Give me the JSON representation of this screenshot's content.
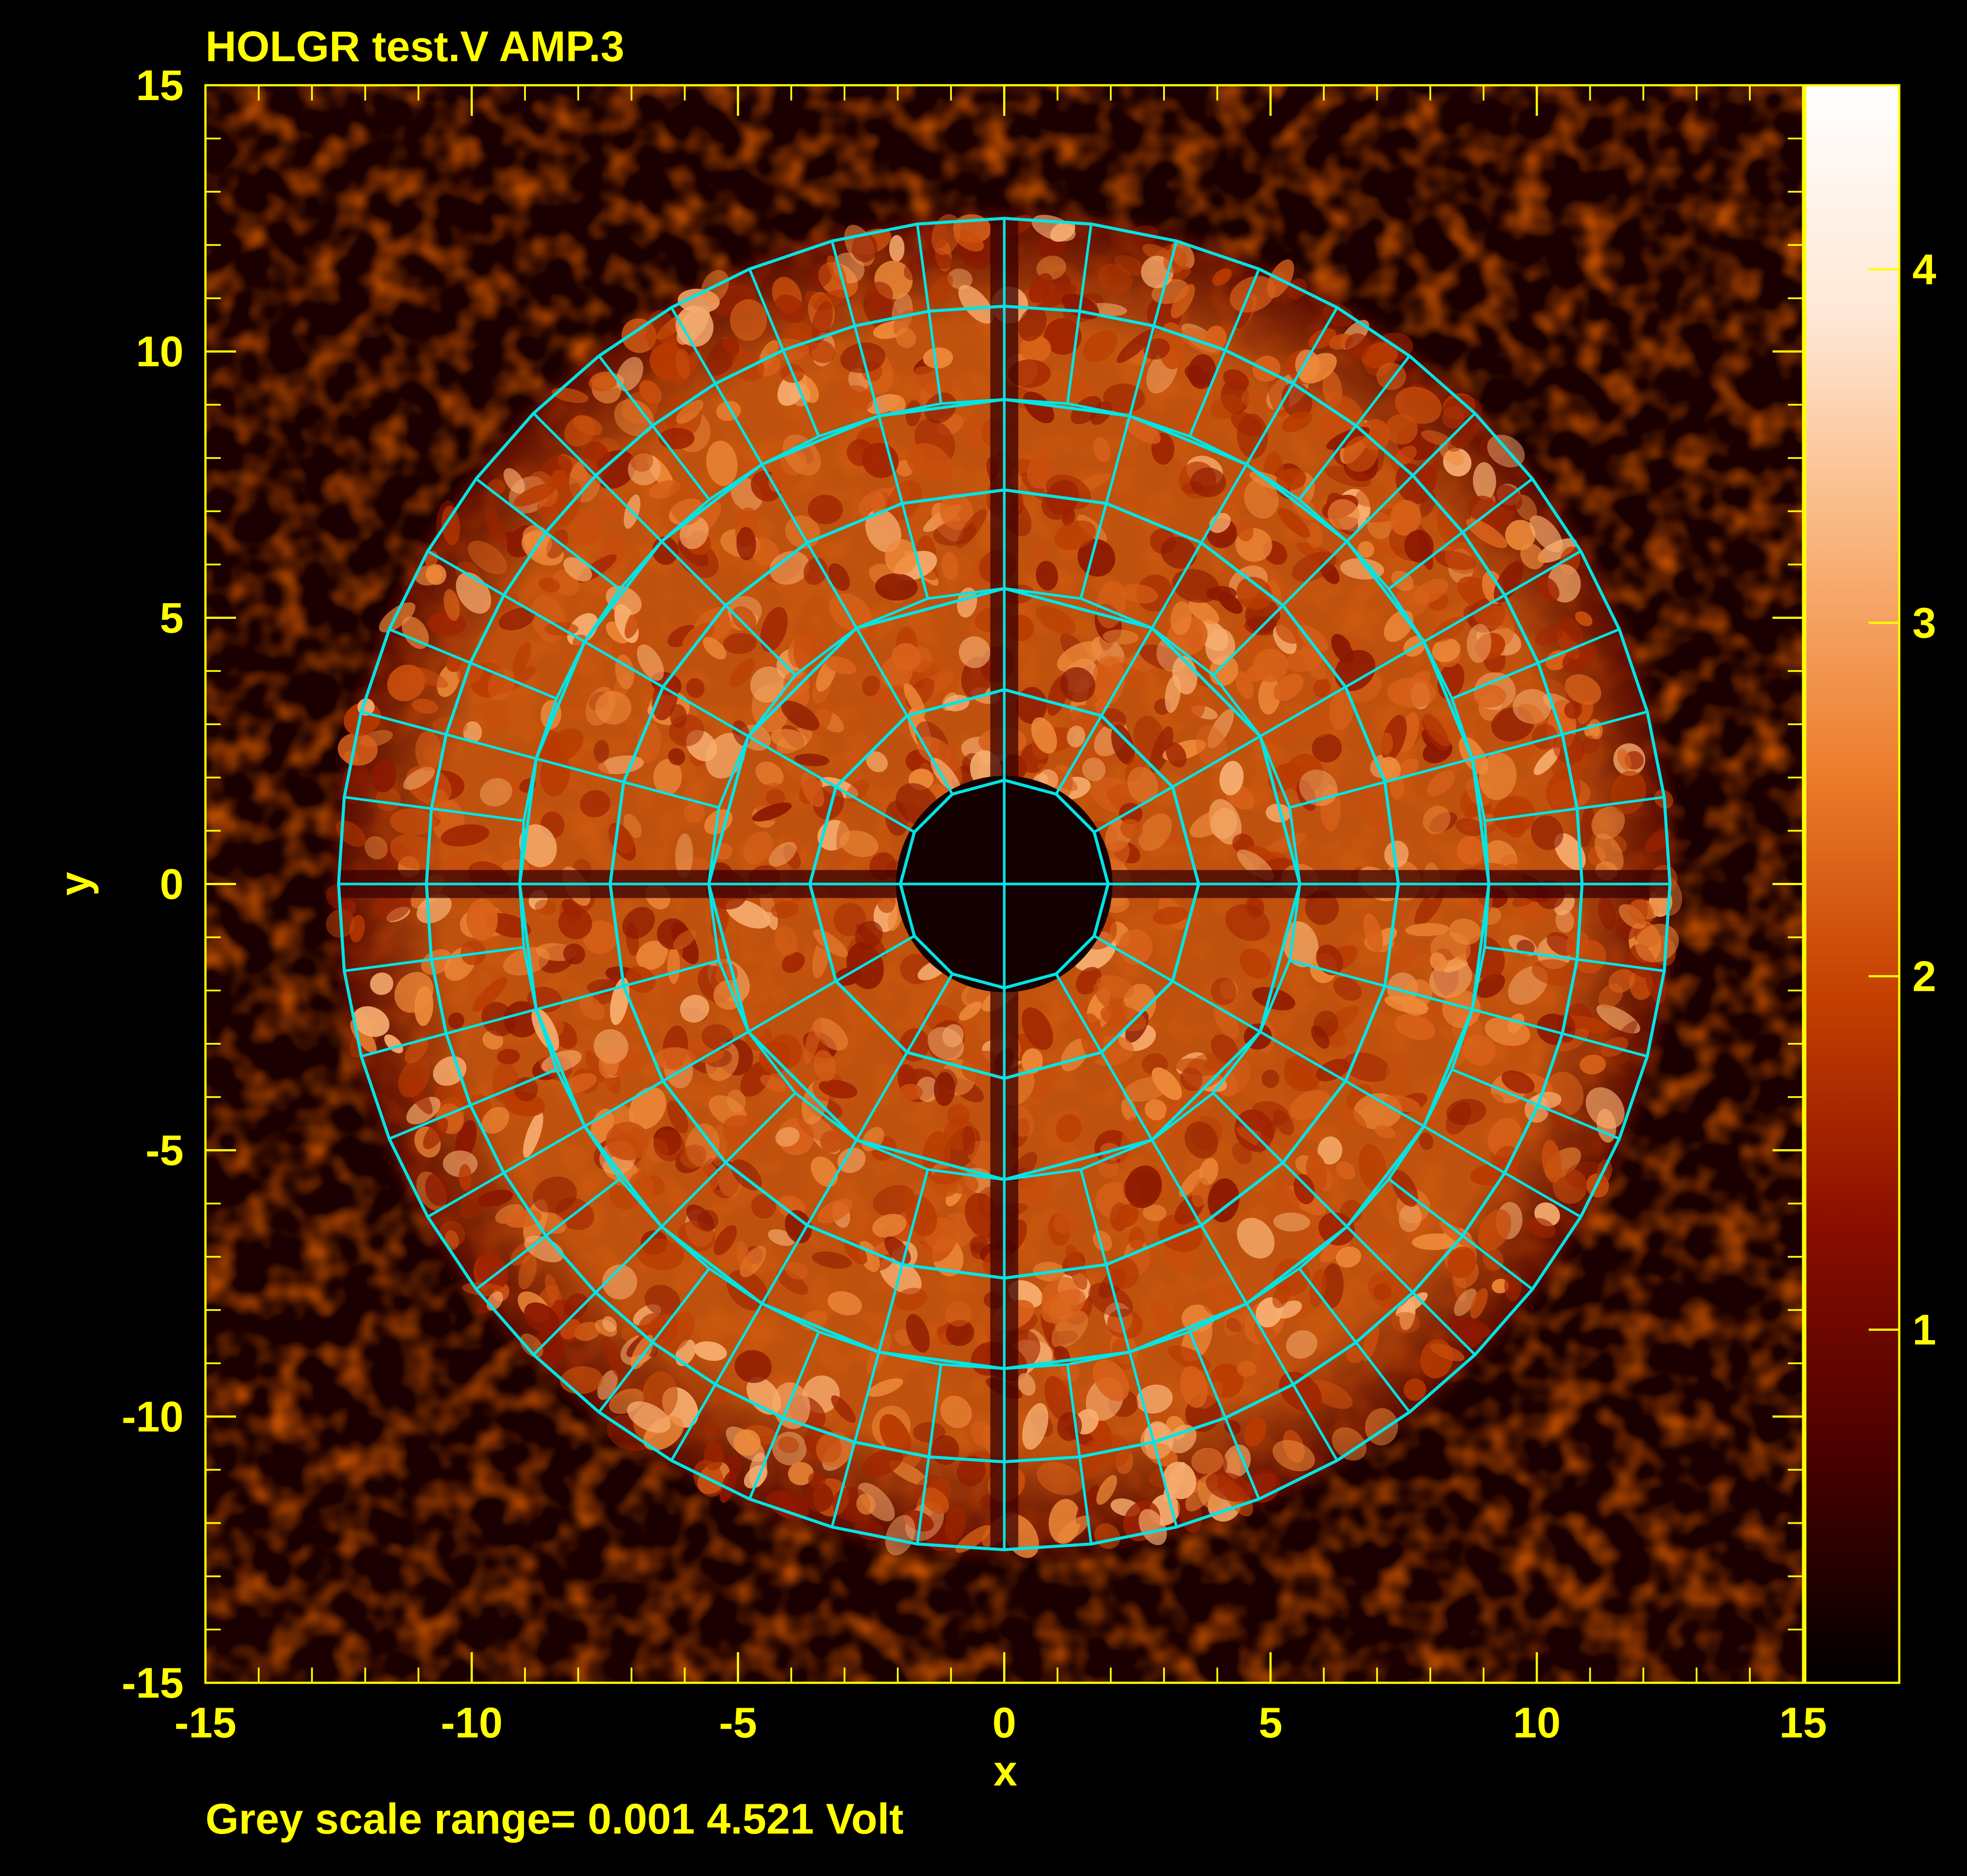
{
  "chart_data": {
    "type": "heatmap",
    "title": "HOLGR test.V AMP.3",
    "xlabel": "x",
    "ylabel": "y",
    "xlim": [
      -15,
      15
    ],
    "ylim": [
      -15,
      15
    ],
    "x_ticks": [
      "-15",
      "-10",
      "-5",
      "0",
      "5",
      "10",
      "15"
    ],
    "y_ticks": [
      "15",
      "10",
      "5",
      "0",
      "-5",
      "-10",
      "-15"
    ],
    "colorbar": {
      "range": [
        0.001,
        4.521
      ],
      "ticks": [
        "1",
        "2",
        "3",
        "4"
      ],
      "tick_values": [
        1,
        2,
        3,
        4
      ],
      "colormap": [
        "#000000",
        "#4a0000",
        "#8b0d00",
        "#c44000",
        "#ec7d2c",
        "#f9b47c",
        "#ffe8d6",
        "#ffffff"
      ]
    },
    "footer": "Grey scale range= 0.001 4.521 Volt",
    "dish": {
      "ring_radii": [
        1.95,
        3.65,
        5.55,
        7.4,
        9.1,
        10.85,
        12.5
      ],
      "panels_per_ring": [
        12,
        12,
        24,
        24,
        48,
        48
      ]
    },
    "colors": {
      "axes": "#ffff00",
      "grid": "#00e5e5",
      "background": "#000000"
    }
  }
}
